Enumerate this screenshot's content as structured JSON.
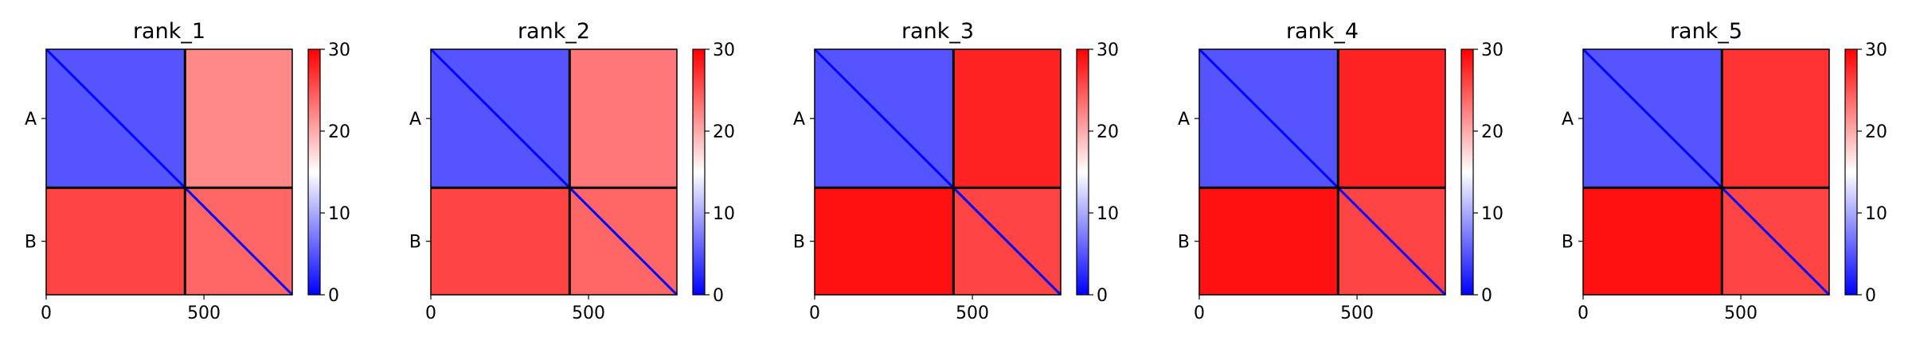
{
  "chart_data": [
    {
      "type": "heatmap",
      "title": "rank_1",
      "x_ticks": [
        0,
        500
      ],
      "y_tick_labels": [
        "A",
        "B"
      ],
      "chain_lengths": [
        440,
        340
      ],
      "colorbar": {
        "vmin": 0,
        "vmax": 30,
        "ticks": [
          0,
          10,
          20,
          30
        ],
        "colors": [
          "#0000ff",
          "#ffffff",
          "#ff0000"
        ]
      },
      "blocks": {
        "A_A": 5,
        "A_B": 22,
        "B_A": 26,
        "B_B": 24
      }
    },
    {
      "type": "heatmap",
      "title": "rank_2",
      "x_ticks": [
        0,
        500
      ],
      "y_tick_labels": [
        "A",
        "B"
      ],
      "chain_lengths": [
        440,
        340
      ],
      "colorbar": {
        "vmin": 0,
        "vmax": 30,
        "ticks": [
          0,
          10,
          20,
          30
        ],
        "colors": [
          "#0000ff",
          "#ffffff",
          "#ff0000"
        ]
      },
      "blocks": {
        "A_A": 5,
        "A_B": 23,
        "B_A": 26,
        "B_B": 24
      }
    },
    {
      "type": "heatmap",
      "title": "rank_3",
      "x_ticks": [
        0,
        500
      ],
      "y_tick_labels": [
        "A",
        "B"
      ],
      "chain_lengths": [
        440,
        340
      ],
      "colorbar": {
        "vmin": 0,
        "vmax": 30,
        "ticks": [
          0,
          10,
          20,
          30
        ],
        "colors": [
          "#0000ff",
          "#ffffff",
          "#ff0000"
        ]
      },
      "blocks": {
        "A_A": 5,
        "A_B": 28,
        "B_A": 29,
        "B_B": 26
      }
    },
    {
      "type": "heatmap",
      "title": "rank_4",
      "x_ticks": [
        0,
        500
      ],
      "y_tick_labels": [
        "A",
        "B"
      ],
      "chain_lengths": [
        440,
        340
      ],
      "colorbar": {
        "vmin": 0,
        "vmax": 30,
        "ticks": [
          0,
          10,
          20,
          30
        ],
        "colors": [
          "#0000ff",
          "#ffffff",
          "#ff0000"
        ]
      },
      "blocks": {
        "A_A": 5,
        "A_B": 28,
        "B_A": 29,
        "B_B": 26
      }
    },
    {
      "type": "heatmap",
      "title": "rank_5",
      "x_ticks": [
        0,
        500
      ],
      "y_tick_labels": [
        "A",
        "B"
      ],
      "chain_lengths": [
        440,
        340
      ],
      "colorbar": {
        "vmin": 0,
        "vmax": 30,
        "ticks": [
          0,
          10,
          20,
          30
        ],
        "colors": [
          "#0000ff",
          "#ffffff",
          "#ff0000"
        ]
      },
      "blocks": {
        "A_A": 5,
        "A_B": 27,
        "B_A": 29,
        "B_B": 26
      }
    }
  ]
}
